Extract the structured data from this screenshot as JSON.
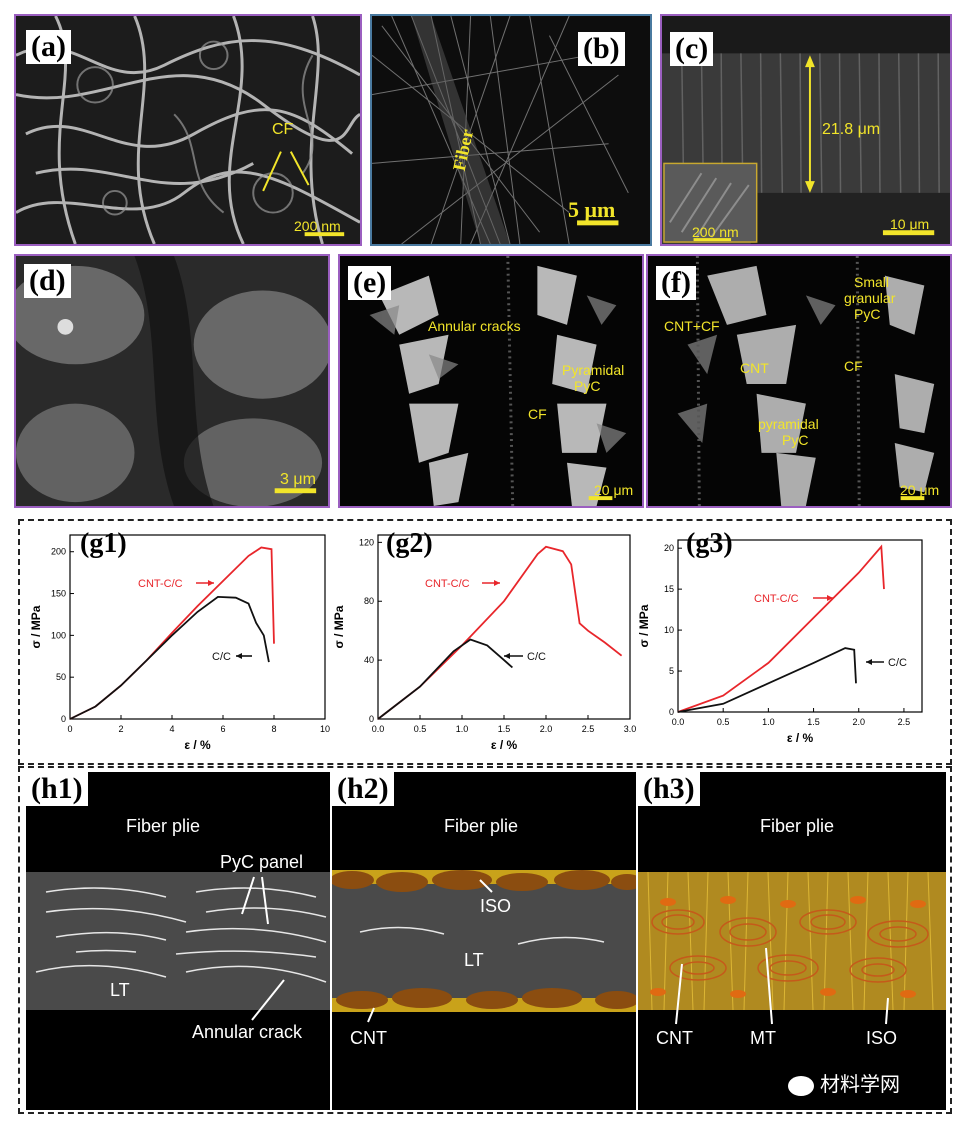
{
  "panels": {
    "a": {
      "label": "(a)",
      "cf": "CF",
      "scale": "200 nm"
    },
    "b": {
      "label": "(b)",
      "fiber": "Fiber",
      "scale": "5 μm"
    },
    "c": {
      "label": "(c)",
      "thickness": "21.8 μm",
      "inset_scale": "200 nm",
      "scale": "10 μm"
    },
    "d": {
      "label": "(d)",
      "scale": "3 μm"
    },
    "e": {
      "label": "(e)",
      "annular": "Annular cracks",
      "pyr1": "Pyramidal",
      "pyr2": "PyC",
      "cf": "CF",
      "scale": "20 μm"
    },
    "f": {
      "label": "(f)",
      "cntcf": "CNT+CF",
      "cnt": "CNT",
      "small1": "Small",
      "small2": "granular",
      "small3": "PyC",
      "cf": "CF",
      "pyr1": "pyramidal",
      "pyr2": "PyC",
      "scale": "20 μm"
    }
  },
  "colors": {
    "cnt_cc": "#e8262b",
    "cc": "#111111",
    "label_yellow": "#f2e52a"
  },
  "chart_data": [
    {
      "type": "line",
      "panel": "(g1)",
      "xlabel": "ε / %",
      "ylabel": "σ / MPa",
      "xlim": [
        0,
        10
      ],
      "ylim": [
        0,
        220
      ],
      "xticks": [
        "0",
        "2",
        "4",
        "6",
        "8",
        "10"
      ],
      "yticks": [
        "0",
        "50",
        "100",
        "150",
        "200"
      ],
      "series": [
        {
          "name": "CNT-C/C",
          "color": "#e8262b",
          "points": [
            [
              0,
              0
            ],
            [
              1,
              15
            ],
            [
              2,
              40
            ],
            [
              3,
              70
            ],
            [
              4,
              103
            ],
            [
              5,
              135
            ],
            [
              6,
              165
            ],
            [
              7,
              195
            ],
            [
              7.5,
              205
            ],
            [
              7.9,
              203
            ],
            [
              8.0,
              90
            ]
          ]
        },
        {
          "name": "C/C",
          "color": "#111111",
          "points": [
            [
              0,
              0
            ],
            [
              1,
              15
            ],
            [
              2,
              40
            ],
            [
              3,
              70
            ],
            [
              4,
              100
            ],
            [
              5,
              128
            ],
            [
              5.8,
              146
            ],
            [
              6.5,
              145
            ],
            [
              7.0,
              138
            ],
            [
              7.3,
              115
            ],
            [
              7.6,
              100
            ],
            [
              7.8,
              68
            ]
          ]
        }
      ]
    },
    {
      "type": "line",
      "panel": "(g2)",
      "xlabel": "ε / %",
      "ylabel": "σ / MPa",
      "xlim": [
        0,
        3.0
      ],
      "ylim": [
        0,
        125
      ],
      "xticks": [
        "0.0",
        "0.5",
        "1.0",
        "1.5",
        "2.0",
        "2.5",
        "3.0"
      ],
      "yticks": [
        "0",
        "40",
        "80",
        "120"
      ],
      "series": [
        {
          "name": "CNT-C/C",
          "color": "#e8262b",
          "points": [
            [
              0,
              0
            ],
            [
              0.5,
              22
            ],
            [
              1.0,
              50
            ],
            [
              1.5,
              80
            ],
            [
              1.9,
              112
            ],
            [
              2.0,
              117
            ],
            [
              2.2,
              114
            ],
            [
              2.3,
              105
            ],
            [
              2.4,
              65
            ],
            [
              2.5,
              60
            ],
            [
              2.7,
              52
            ],
            [
              2.9,
              43
            ]
          ]
        },
        {
          "name": "C/C",
          "color": "#111111",
          "points": [
            [
              0,
              0
            ],
            [
              0.5,
              22
            ],
            [
              0.9,
              46
            ],
            [
              1.1,
              54
            ],
            [
              1.3,
              50
            ],
            [
              1.5,
              40
            ],
            [
              1.6,
              35
            ]
          ]
        }
      ]
    },
    {
      "type": "line",
      "panel": "(g3)",
      "xlabel": "ε / %",
      "ylabel": "σ / MPa",
      "xlim": [
        0,
        2.7
      ],
      "ylim": [
        0,
        21
      ],
      "xticks": [
        "0.0",
        "0.5",
        "1.0",
        "1.5",
        "2.0",
        "2.5"
      ],
      "yticks": [
        "0",
        "5",
        "10",
        "15",
        "20"
      ],
      "series": [
        {
          "name": "CNT-C/C",
          "color": "#e8262b",
          "points": [
            [
              0,
              0
            ],
            [
              0.5,
              2
            ],
            [
              1.0,
              6
            ],
            [
              1.5,
              11.5
            ],
            [
              2.0,
              17
            ],
            [
              2.25,
              20.2
            ],
            [
              2.28,
              15
            ]
          ]
        },
        {
          "name": "C/C",
          "color": "#111111",
          "points": [
            [
              0,
              0
            ],
            [
              0.5,
              1
            ],
            [
              1.0,
              3.5
            ],
            [
              1.5,
              6
            ],
            [
              1.85,
              7.8
            ],
            [
              1.95,
              7.6
            ],
            [
              1.97,
              3.5
            ]
          ]
        }
      ]
    }
  ],
  "schematic": {
    "h1": {
      "label": "(h1)",
      "fiber": "Fiber plie",
      "pyc": "PyC panel",
      "lt": "LT",
      "crack": "Annular crack"
    },
    "h2": {
      "label": "(h2)",
      "fiber": "Fiber plie",
      "iso": "ISO",
      "lt": "LT",
      "cnt": "CNT"
    },
    "h3": {
      "label": "(h3)",
      "fiber": "Fiber plie",
      "cnt": "CNT",
      "mt": "MT",
      "iso": "ISO"
    }
  },
  "watermark": "材料学网"
}
